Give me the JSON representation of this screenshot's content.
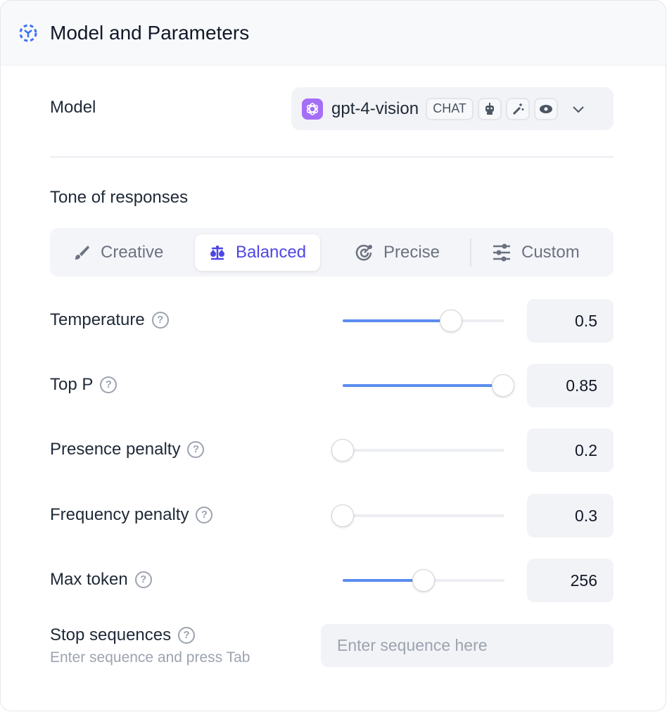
{
  "header": {
    "title": "Model and Parameters",
    "icon": "model-cube-icon",
    "accent": "#3b6ff5"
  },
  "model": {
    "label": "Model",
    "name": "gpt-4-vision",
    "tag": "CHAT",
    "capabilities": [
      "robot-icon",
      "magic-wand-icon",
      "eye-icon"
    ],
    "provider_color": "#a56ef7"
  },
  "tone": {
    "label": "Tone of responses",
    "options": [
      {
        "label": "Creative",
        "icon": "brush-icon"
      },
      {
        "label": "Balanced",
        "icon": "scale-icon",
        "selected": true
      },
      {
        "label": "Precise",
        "icon": "target-icon"
      },
      {
        "label": "Custom",
        "icon": "sliders-icon"
      }
    ]
  },
  "params": [
    {
      "label": "Temperature",
      "value": "0.5",
      "slider_fill": 0.67
    },
    {
      "label": "Top P",
      "value": "0.85",
      "slider_fill": 0.99
    },
    {
      "label": "Presence penalty",
      "value": "0.2",
      "slider_fill": 0
    },
    {
      "label": "Frequency penalty",
      "value": "0.3",
      "slider_fill": 0
    },
    {
      "label": "Max token",
      "value": "256",
      "slider_fill": 0.5
    }
  ],
  "stop": {
    "label": "Stop sequences",
    "hint": "Enter sequence and press Tab",
    "placeholder": "Enter sequence here"
  }
}
